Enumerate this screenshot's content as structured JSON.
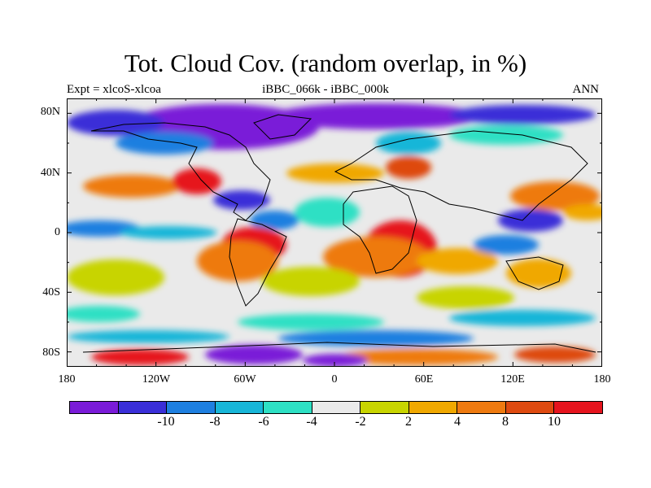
{
  "header": {
    "title": "Tot. Cloud Cov. (random overlap, in %)",
    "left": "Expt = xlcoS-xlcoa",
    "center": "iBBC_066k - iBBC_000k",
    "right": "ANN"
  },
  "axes": {
    "y_ticks": [
      "80N",
      "40N",
      "0",
      "40S",
      "80S"
    ],
    "y_values": [
      80,
      40,
      0,
      -40,
      -80
    ],
    "x_ticks": [
      "180",
      "120W",
      "60W",
      "0",
      "60E",
      "120E",
      "180"
    ],
    "x_values": [
      -180,
      -120,
      -60,
      0,
      60,
      120,
      180
    ]
  },
  "colorbar": {
    "colors": [
      "#7a1bd8",
      "#3a2fd8",
      "#1e7fe0",
      "#18b6d8",
      "#2ee0c4",
      "#eaeaea",
      "#c8d400",
      "#f0a800",
      "#ee7a10",
      "#de4a10",
      "#e6141e"
    ],
    "labels": [
      "-10",
      "-8",
      "-6",
      "-4",
      "-2",
      "2",
      "4",
      "8",
      "10"
    ]
  }
}
